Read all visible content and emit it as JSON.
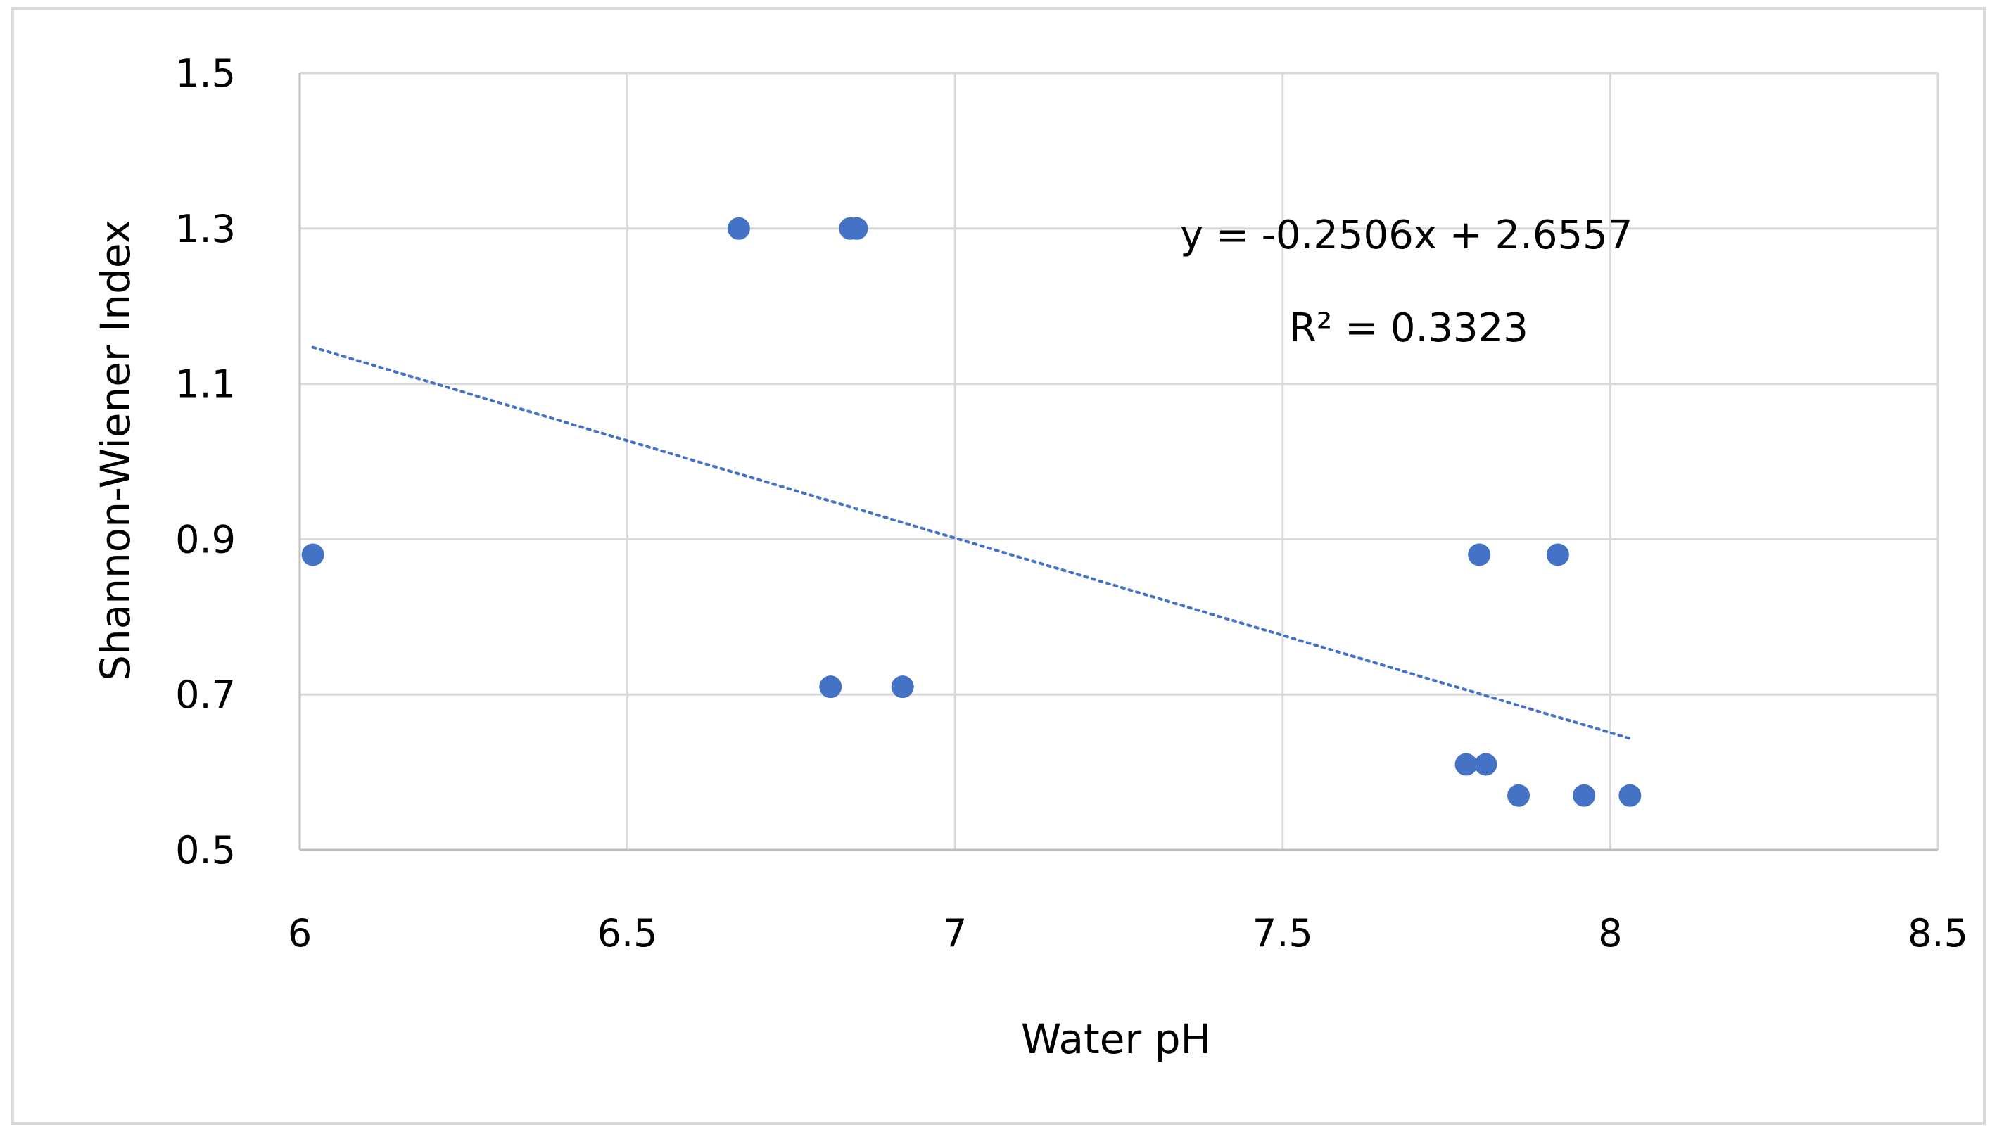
{
  "chart_data": {
    "type": "scatter",
    "title": "",
    "xlabel": "Water pH",
    "ylabel": "Shannon-Wiener Index",
    "xlim": [
      6,
      8.5
    ],
    "ylim": [
      0.5,
      1.5
    ],
    "x_ticks": [
      "6",
      "6.5",
      "7",
      "7.5",
      "8",
      "8.5"
    ],
    "y_ticks": [
      "1.5",
      "1.3",
      "1.1",
      "0.9",
      "0.7",
      "0.5"
    ],
    "grid": true,
    "legend": "none",
    "point_color": "#4472C4",
    "series": [
      {
        "x": [
          6.02,
          6.67,
          6.84,
          6.85,
          6.81,
          6.92,
          7.8,
          7.92,
          7.78,
          7.81,
          7.86,
          7.96,
          8.03
        ],
        "y": [
          0.88,
          1.3,
          1.3,
          1.3,
          0.71,
          0.71,
          0.88,
          0.88,
          0.61,
          0.61,
          0.57,
          0.57,
          0.57
        ]
      }
    ],
    "trendline": {
      "type": "linear",
      "slope": -0.2506,
      "intercept": 2.6557,
      "x_range": [
        6.02,
        8.03
      ],
      "style": "dotted",
      "color": "#4472C4"
    },
    "annotations": {
      "equation": "y = -0.2506x + 2.6557",
      "r_squared": "R² = 0.3323"
    }
  }
}
